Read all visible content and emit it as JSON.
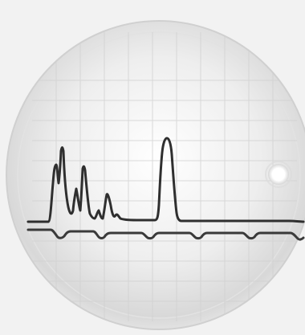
{
  "photo": {
    "subject": "oscilloscope-screen",
    "colors": {
      "background": "#f4f4f4",
      "screen_glow": "#ffffff",
      "screen_shadow": "#cfcfcf",
      "grid": "#c9c9c9",
      "trace": "#2f2f2f",
      "bright_spot": "#ffffff"
    }
  }
}
